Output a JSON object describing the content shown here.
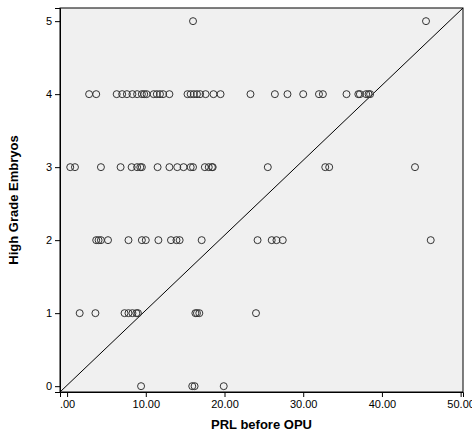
{
  "chart_data": {
    "type": "scatter",
    "x_label": "PRL before OPU",
    "y_label": "High Grade Embryos",
    "marker": "circle-open",
    "color": "#333333",
    "x": [
      2.8,
      3.7,
      6.3,
      7.0,
      7.6,
      8.3,
      8.9,
      9.5,
      9.8,
      10.1,
      11.0,
      11.4,
      11.8,
      12.2,
      13.0,
      15.3,
      15.7,
      16.1,
      16.5,
      16.9,
      17.6,
      18.6,
      19.5,
      23.3,
      26.4,
      28.0,
      30.0,
      32.0,
      32.5,
      35.5,
      37.0,
      37.2,
      38.0,
      38.3,
      38.5,
      0.4,
      1.0,
      4.3,
      6.8,
      8.2,
      8.9,
      9.3,
      9.5,
      11.5,
      13.0,
      14.0,
      14.8,
      15.7,
      16.0,
      17.5,
      18.0,
      18.4,
      18.5,
      25.5,
      32.8,
      33.3,
      44.2,
      3.7,
      4.0,
      4.3,
      5.2,
      7.8,
      9.5,
      10.0,
      11.6,
      13.2,
      13.9,
      14.3,
      17.1,
      24.2,
      26.0,
      26.6,
      27.4,
      46.2,
      1.6,
      3.6,
      7.3,
      7.8,
      8.3,
      8.8,
      9.0,
      16.3,
      16.5,
      16.8,
      24.0,
      9.4,
      15.9,
      16.2,
      19.9,
      16.0,
      45.6
    ],
    "values": [
      4,
      4,
      4,
      4,
      4,
      4,
      4,
      4,
      4,
      4,
      4,
      4,
      4,
      4,
      4,
      4,
      4,
      4,
      4,
      4,
      4,
      4,
      4,
      4,
      4,
      4,
      4,
      4,
      4,
      4,
      4,
      4,
      4,
      4,
      4,
      3,
      3,
      3,
      3,
      3,
      3,
      3,
      3,
      3,
      3,
      3,
      3,
      3,
      3,
      3,
      3,
      3,
      3,
      3,
      3,
      3,
      3,
      2,
      2,
      2,
      2,
      2,
      2,
      2,
      2,
      2,
      2,
      2,
      2,
      2,
      2,
      2,
      2,
      2,
      1,
      1,
      1,
      1,
      1,
      1,
      1,
      1,
      1,
      1,
      1,
      0,
      0,
      0,
      0,
      5,
      5
    ],
    "xlim": [
      -0.9,
      50.3
    ],
    "ylim": [
      -0.08,
      5.18
    ],
    "xticks": [
      {
        "value": 0,
        "label": ".00"
      },
      {
        "value": 10,
        "label": "10.00"
      },
      {
        "value": 20,
        "label": "20.00"
      },
      {
        "value": 30,
        "label": "30.00"
      },
      {
        "value": 40,
        "label": "40.00"
      },
      {
        "value": 50,
        "label": "50.00"
      }
    ],
    "yticks": [
      0,
      1,
      2,
      3,
      4,
      5
    ],
    "grid": false
  }
}
